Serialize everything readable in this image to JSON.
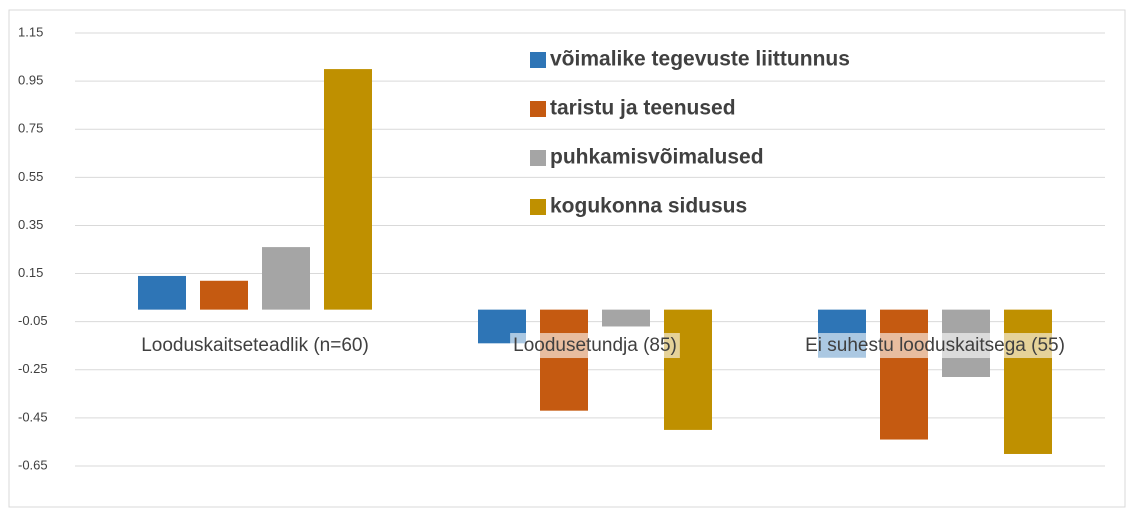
{
  "chart_data": {
    "type": "bar",
    "categories": [
      "Looduskaitseteadlik (n=60)",
      "Loodusetundja (85)",
      "Ei suhestu looduskaitsega (55)"
    ],
    "series": [
      {
        "name": "võimalike tegevuste liittunnus",
        "color": "#2e75b6",
        "values": [
          0.14,
          -0.14,
          -0.2
        ]
      },
      {
        "name": "taristu ja teenused",
        "color": "#c55a11",
        "values": [
          0.12,
          -0.42,
          -0.54
        ]
      },
      {
        "name": "puhkamisvõimalused",
        "color": "#a5a5a5",
        "values": [
          0.26,
          -0.07,
          -0.28
        ]
      },
      {
        "name": "kogukonna sidusus",
        "color": "#bf9000",
        "values": [
          1.0,
          -0.5,
          -0.6
        ]
      }
    ],
    "ylim": [
      -0.65,
      1.15
    ],
    "yticks": [
      1.15,
      0.95,
      0.75,
      0.55,
      0.35,
      0.15,
      -0.05,
      -0.25,
      -0.45,
      -0.65
    ],
    "grid": true
  }
}
